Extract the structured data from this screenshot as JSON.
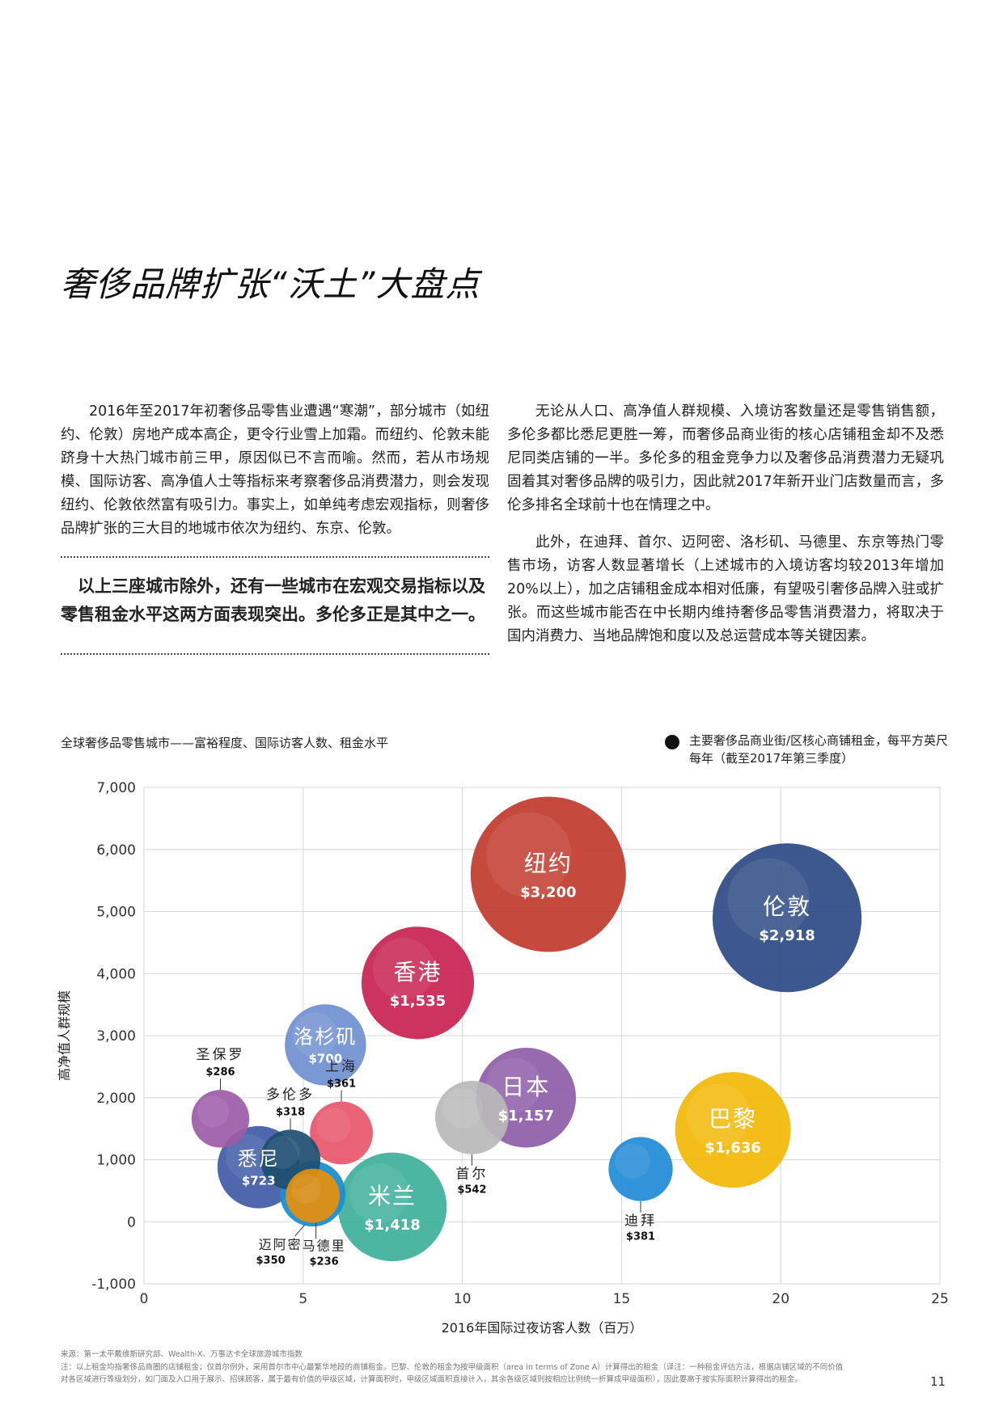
{
  "page": {
    "title": "奢侈品牌扩张“沃土”大盘点",
    "left_paragraph": "2016年至2017年初奢侈品零售业遭遇“寒潮”，部分城市（如纽约、伦敦）房地产成本高企，更令行业雪上加霜。而纽约、伦敦未能跻身十大热门城市前三甲，原因似已不言而喻。然而，若从市场规模、国际访客、高净值人士等指标来考察奢侈品消费潜力，则会发现纽约、伦敦依然富有吸引力。事实上，如单纯考虑宏观指标，则奢侈品牌扩张的三大目的地城市依次为纽约、东京、伦敦。",
    "pull_quote": "以上三座城市除外，还有一些城市在宏观交易指标以及零售租金水平这两方面表现突出。多伦多正是其中之一。",
    "right_paragraph_1": "无论从人口、高净值人群规模、入境访客数量还是零售销售额，多伦多都比悉尼更胜一筹，而奢侈品商业街的核心店铺租金却不及悉尼同类店铺的一半。多伦多的租金竞争力以及奢侈品消费潜力无疑巩固着其对奢侈品牌的吸引力，因此就2017年新开业门店数量而言，多伦多排名全球前十也在情理之中。",
    "right_paragraph_2": "此外，在迪拜、首尔、迈阿密、洛杉矶、马德里、东京等热门零售市场，访客人数显著增长（上述城市的入境访客均较2013年增加20%以上），加之店铺租金成本相对低廉，有望吸引奢侈品牌入驻或扩张。而这些城市能否在中长期内维持奢侈品零售消费潜力，将取决于国内消费力、当地品牌饱和度以及总运营成本等关键因素。",
    "chart_title": "全球奢侈品零售城市——富裕程度、国际访客人数、租金水平",
    "legend_text": "主要奢侈品商业街/区核心商铺租金，每平方英尺每年（截至2017年第三季度）",
    "source_note": "来源：第一太平戴维斯研究部、Wealth-X、万事达卡全球旅游城市指数",
    "note_line_1": "注：以上租金均指奢侈品商圈的店铺租金；仅首尔例外，采用首尔市中心最繁华地段的商铺租金。巴黎、伦敦的租金为按甲级面积（area in terms of Zone A）计算得出的租金（译注：一种租金评估方法，根据店铺区域的不同价值",
    "note_line_2": "对各区域进行等级划分，如门面及入口用于展示、招徕顾客，属于最有价值的甲级区域，计算面积时，甲级区域面积直接计入，其余各级区域则按相应比例统一折算成甲级面积），因此要高于按实际面积计算得出的租金。",
    "page_number": "11"
  },
  "chart_data": {
    "type": "scatter",
    "title": "全球奢侈品零售城市——富裕程度、国际访客人数、租金水平",
    "xlabel": "2016年国际过夜访客人数（百万）",
    "ylabel": "高净值人群规模",
    "xlim": [
      0,
      25
    ],
    "ylim": [
      -1000,
      7000
    ],
    "x_ticks": [
      "0",
      "5",
      "10",
      "15",
      "20",
      "25"
    ],
    "y_ticks": [
      "-1,000",
      "0",
      "1,000",
      "2,000",
      "3,000",
      "4,000",
      "5,000",
      "6,000",
      "7,000"
    ],
    "grid": true,
    "legend": "主要奢侈品商业街/区核心商铺租金，每平方英尺每年（截至2017年第三季度）",
    "points": [
      {
        "city": "纽约",
        "rent": "$3,200",
        "x": 12.7,
        "y": 5600,
        "color": "#c0392b",
        "label": "inside"
      },
      {
        "city": "伦敦",
        "rent": "$2,918",
        "x": 20.2,
        "y": 4900,
        "color": "#2c4a86",
        "label": "inside"
      },
      {
        "city": "香港",
        "rent": "$1,535",
        "x": 8.6,
        "y": 3850,
        "color": "#c8224f",
        "label": "inside"
      },
      {
        "city": "巴黎",
        "rent": "$1,636",
        "x": 18.5,
        "y": 1480,
        "color": "#f2b707",
        "label": "inside"
      },
      {
        "city": "米兰",
        "rent": "$1,418",
        "x": 7.8,
        "y": 240,
        "color": "#3db09a",
        "label": "inside"
      },
      {
        "city": "日本",
        "rent": "$1,157",
        "x": 12.0,
        "y": 2000,
        "color": "#8e5ca8",
        "label": "inside"
      },
      {
        "city": "悉尼",
        "rent": "$723",
        "x": 3.6,
        "y": 880,
        "color": "#3f5aa6",
        "label": "inside"
      },
      {
        "city": "洛杉矶",
        "rent": "$700",
        "x": 5.7,
        "y": 2850,
        "color": "#6f8fd0",
        "label": "inside"
      },
      {
        "city": "首尔",
        "rent": "$542",
        "x": 10.3,
        "y": 1680,
        "color": "#b8b8b8",
        "label": "below"
      },
      {
        "city": "迪拜",
        "rent": "$381",
        "x": 15.6,
        "y": 850,
        "color": "#1f8ad6",
        "label": "below"
      },
      {
        "city": "上海",
        "rent": "$361",
        "x": 6.2,
        "y": 1430,
        "color": "#e8556a",
        "label": "above"
      },
      {
        "city": "迈阿密",
        "rent": "$350",
        "x": 5.3,
        "y": 450,
        "color": "#1a8fd0",
        "label": "below-left"
      },
      {
        "city": "多伦多",
        "rent": "$318",
        "x": 4.6,
        "y": 1000,
        "color": "#1e4e6e",
        "label": "above"
      },
      {
        "city": "圣保罗",
        "rent": "$286",
        "x": 2.4,
        "y": 1660,
        "color": "#9c5ba8",
        "label": "above"
      },
      {
        "city": "马德里",
        "rent": "$236",
        "x": 5.3,
        "y": 420,
        "color": "#e58f0b",
        "label": "below-right"
      }
    ]
  }
}
